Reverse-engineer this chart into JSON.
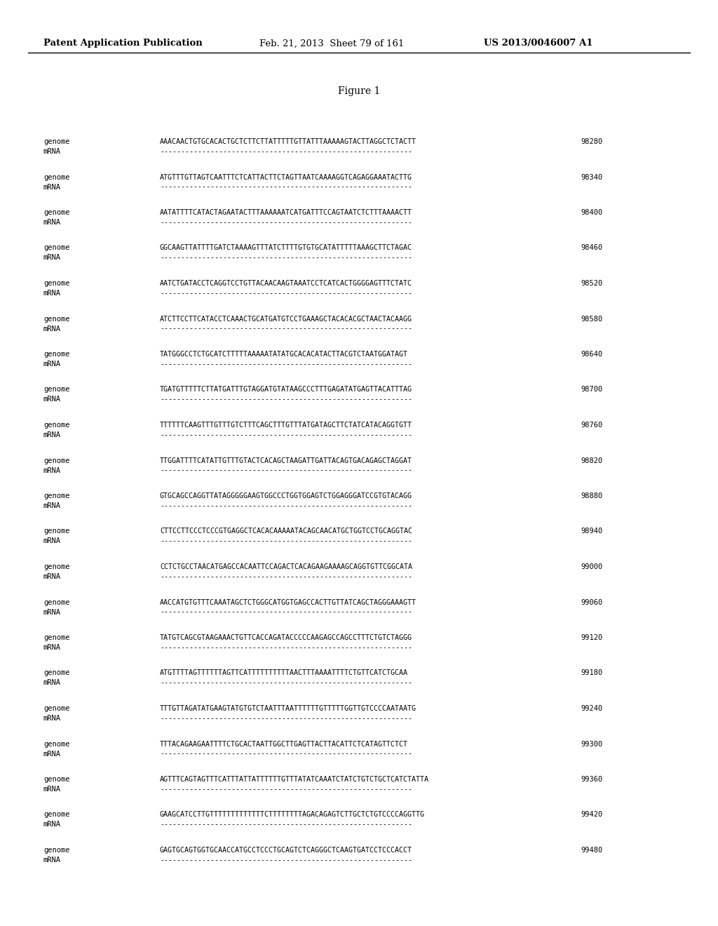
{
  "header_left": "Patent Application Publication",
  "header_mid": "Feb. 21, 2013  Sheet 79 of 161",
  "header_right": "US 2013/0046007 A1",
  "figure_title": "Figure 1",
  "background_color": "#ffffff",
  "text_color": "#000000",
  "rows": [
    {
      "genome": "AAACAACTGTGCACACTGCTCTTCTTATTTTTGTTATTTAAAAAGTACTTAGGCTCTACTT",
      "mrna": "------------------------------------------------------------",
      "num": "98280"
    },
    {
      "genome": "ATGTTTGTTAGTCAATTTCTCATTACTTCTAGTTAATCAAAAGGTCAGAGGAAATACTTG",
      "mrna": "------------------------------------------------------------",
      "num": "98340"
    },
    {
      "genome": "AATATTTTCATACTAGAATACTTTAAAAAATCATGATTTCCAGTAATCTCTTTAAAACTT",
      "mrna": "------------------------------------------------------------",
      "num": "98400"
    },
    {
      "genome": "GGCAAGTTATTTTGATCTAAAAGTTTATCTTTTGTGTGCATATTTTTAAAGCTTCTAGAC",
      "mrna": "------------------------------------------------------------",
      "num": "98460"
    },
    {
      "genome": "AATCTGATACCTCAGGTCCTGTTACAACAAGTAAATCCTCATCACTGGGGAGTTTCTATC",
      "mrna": "------------------------------------------------------------",
      "num": "98520"
    },
    {
      "genome": "ATCTTCCTTCATACCTCAAACTGCATGATGTCCTGAAAGCTACACACGCTAACTACAAGG",
      "mrna": "------------------------------------------------------------",
      "num": "98580"
    },
    {
      "genome": "TATGGGCCTCTGCATCTTTTTAAAAATATATGCACACATACTTACGTCTAATGGATAGT",
      "mrna": "------------------------------------------------------------",
      "num": "98640"
    },
    {
      "genome": "TGATGTTTTTCTTATGATTTGTAGGATGTATAAGCCCTTTGAGATATGAGTTACATTTAG",
      "mrna": "------------------------------------------------------------",
      "num": "98700"
    },
    {
      "genome": "TTTTTTCAAGTTTGTTTGTCTTTCAGCTTTGTTTATGATAGCTTCTATCATACAGGTGTT",
      "mrna": "------------------------------------------------------------",
      "num": "98760"
    },
    {
      "genome": "TTGGATTTTCATATTGTTTGTACTCACAGCTAAGATTGATTACAGTGACAGAGCTAGGAT",
      "mrna": "------------------------------------------------------------",
      "num": "98820"
    },
    {
      "genome": "GTGCAGCCAGGTTATAGGGGGAAGTGGCCCTGGTGGAGTCTGGAGGGATCCGTGTACAGG",
      "mrna": "------------------------------------------------------------",
      "num": "98880"
    },
    {
      "genome": "CTTCCTTCCCTCCCGTGAGGCTCACACAAAAATACAGCAACATGCTGGTCCTGCAGGTAC",
      "mrna": "------------------------------------------------------------",
      "num": "98940"
    },
    {
      "genome": "CCTCTGCCTAACATGAGCCACAATTCCAGACTCACAGAAGAAAAGCAGGTGTTCGGCATA",
      "mrna": "------------------------------------------------------------",
      "num": "99000"
    },
    {
      "genome": "AACCATGTGTTTCAAATAGCTCTGGGCATGGTGAGCCACTTGTTATCAGCTAGGGAAAGTT",
      "mrna": "------------------------------------------------------------",
      "num": "99060"
    },
    {
      "genome": "TATGTCAGCGTAAGAAACTGTTCACCAGATACCCCCAAGAGCCAGCCTTTCTGTCTAGGG",
      "mrna": "------------------------------------------------------------",
      "num": "99120"
    },
    {
      "genome": "ATGTTTTAGTTTTTTAGTTCATTTTTTTTTTAACTTTAAAATTTTCTGTTCATCTGCAA",
      "mrna": "------------------------------------------------------------",
      "num": "99180"
    },
    {
      "genome": "TTTGTTAGATATGAAGTATGTGTCTAATTTAATTTTTTGTTTTTGGTTGTCCCCAATAATG",
      "mrna": "------------------------------------------------------------",
      "num": "99240"
    },
    {
      "genome": "TTTACAGAAGAATTTTCTGCACTAATTGGCTTGAGTTACTTACATTCTCATAGTTCTCT",
      "mrna": "------------------------------------------------------------",
      "num": "99300"
    },
    {
      "genome": "AGTTTCAGTAGTTTCATTTATTATTTTTTGTTTATATCAAATCTATCTGTCTGCTCATCTATTA",
      "mrna": "------------------------------------------------------------",
      "num": "99360"
    },
    {
      "genome": "GAAGCATCCTTGTTTTTTTTTTTTTCTTTTTTTTAGACAGAGTCTTGCTCTGTCCCCAGGTTG",
      "mrna": "------------------------------------------------------------",
      "num": "99420"
    },
    {
      "genome": "GAGTGCAGTGGTGCAACCATGCCTCCCTGCAGTCTCAGGGCTCAAGTGATCCTCCCACCT",
      "mrna": "------------------------------------------------------------",
      "num": "99480"
    }
  ]
}
